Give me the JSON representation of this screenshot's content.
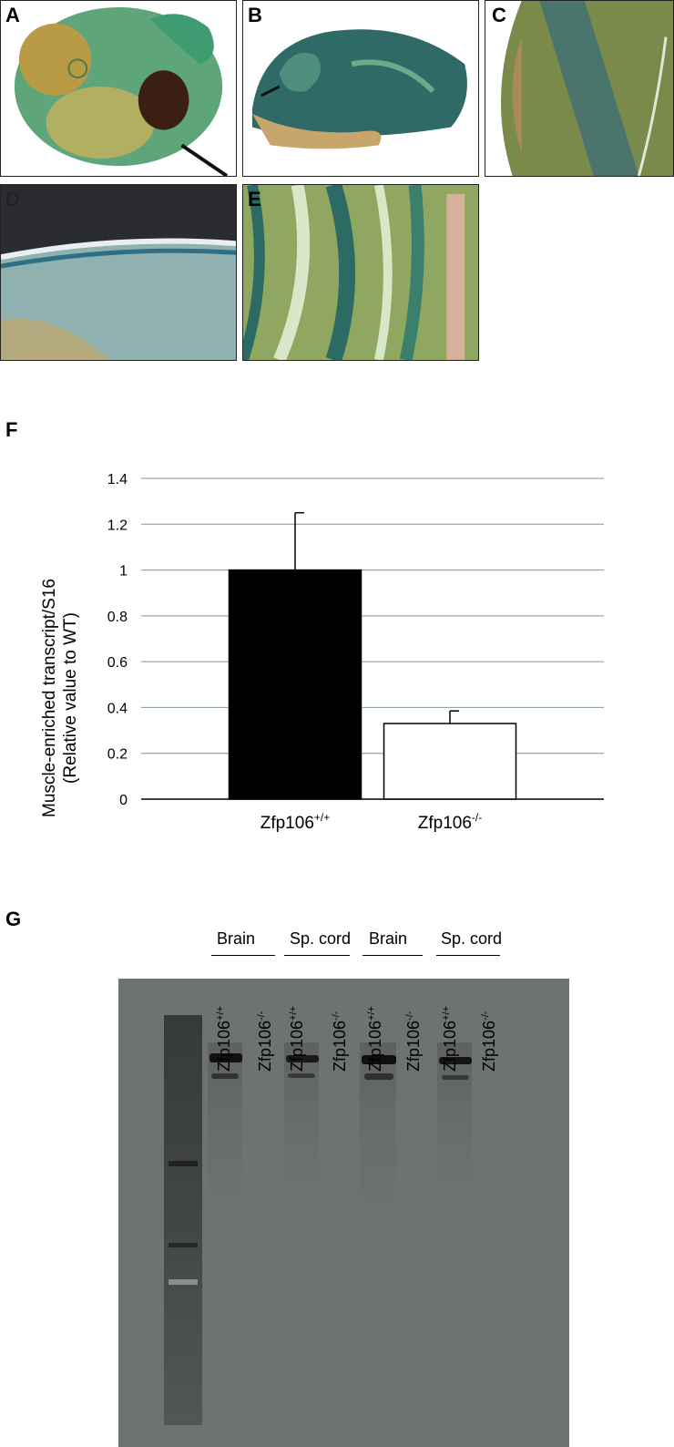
{
  "panels": {
    "A": {
      "label": "A",
      "subject": "whole-mount stained embryo"
    },
    "B": {
      "label": "B",
      "subject": "stained sagittal section"
    },
    "C": {
      "label": "C",
      "subject": "stained tissue closeup"
    },
    "D": {
      "label": "D",
      "subject": "stained tissue edge"
    },
    "E": {
      "label": "E",
      "subject": "stained muscle tissue"
    }
  },
  "figure_f": {
    "label": "F",
    "chart_data": {
      "type": "bar",
      "categories": [
        "Zfp106+/+",
        "Zfp106-/-"
      ],
      "category_base": [
        "Zfp106",
        "Zfp106"
      ],
      "category_sup": [
        "+/+",
        "-/-"
      ],
      "values": [
        1.0,
        0.33
      ],
      "errors": [
        0.25,
        0.055
      ],
      "bar_colors": [
        "#000000",
        "#ffffff"
      ],
      "ylabel_line1": "Muscle-enriched transcript/S16",
      "ylabel_line2": "(Relative value to WT)",
      "ylim": [
        0,
        1.4
      ],
      "yticks": [
        "0",
        "0.2",
        "0.4",
        "0.6",
        "0.8",
        "1",
        "1.2",
        "1.4"
      ],
      "grid": true
    }
  },
  "figure_g": {
    "label": "G",
    "groups": [
      "Brain",
      "Sp. cord",
      "Brain",
      "Sp. cord"
    ],
    "lanes": [
      {
        "base": "Zfp106",
        "sup": "+/+"
      },
      {
        "base": "Zfp106",
        "sup": "-/-"
      },
      {
        "base": "Zfp106",
        "sup": "+/+"
      },
      {
        "base": "Zfp106",
        "sup": "-/-"
      },
      {
        "base": "Zfp106",
        "sup": "+/+"
      },
      {
        "base": "Zfp106",
        "sup": "-/-"
      },
      {
        "base": "Zfp106",
        "sup": "+/+"
      },
      {
        "base": "Zfp106",
        "sup": "-/-"
      }
    ]
  }
}
